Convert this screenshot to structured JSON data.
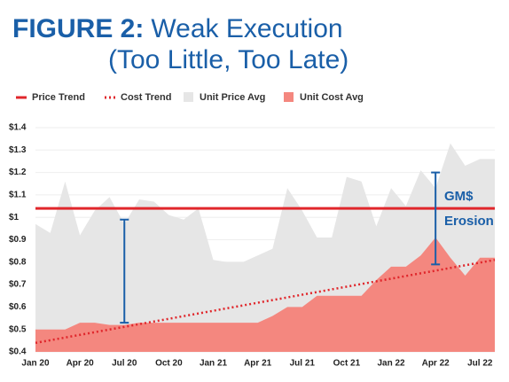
{
  "chart_data": {
    "type": "area",
    "title_label": "FIGURE 2:",
    "title": "Weak Execution",
    "subtitle": "(Too Little, Too Late)",
    "categories": [
      "Jan 20",
      null,
      null,
      "Apr 20",
      null,
      null,
      "Jul 20",
      null,
      null,
      "Oct 20",
      null,
      null,
      "Jan 21",
      null,
      null,
      "Apr 21",
      null,
      null,
      "Jul 21",
      null,
      null,
      "Oct 21",
      null,
      null,
      "Jan 22",
      null,
      null,
      "Apr 22",
      null,
      null,
      "Jul 22",
      null
    ],
    "series": [
      {
        "name": "Unit Price Avg",
        "color": "#e6e6e6",
        "values": [
          0.97,
          0.93,
          1.16,
          0.92,
          1.03,
          1.09,
          0.97,
          1.08,
          1.07,
          1.01,
          0.99,
          1.04,
          0.81,
          0.8,
          0.8,
          0.83,
          0.86,
          1.13,
          1.03,
          0.91,
          0.91,
          1.18,
          1.16,
          0.96,
          1.13,
          1.05,
          1.21,
          1.13,
          1.33,
          1.23,
          1.26,
          1.26
        ]
      },
      {
        "name": "Unit Cost Avg",
        "color": "#f4877f",
        "values": [
          0.5,
          0.5,
          0.5,
          0.53,
          0.53,
          0.52,
          0.52,
          0.53,
          0.53,
          0.53,
          0.53,
          0.53,
          0.53,
          0.53,
          0.53,
          0.53,
          0.56,
          0.6,
          0.6,
          0.65,
          0.65,
          0.65,
          0.65,
          0.72,
          0.78,
          0.78,
          0.83,
          0.91,
          0.82,
          0.74,
          0.82,
          0.82
        ]
      }
    ],
    "trends": [
      {
        "name": "Price Trend",
        "color": "#e0262b",
        "style": "solid",
        "values": [
          1.04,
          1.04
        ]
      },
      {
        "name": "Cost Trend",
        "color": "#e0262b",
        "style": "dotted",
        "values": [
          0.44,
          0.81
        ]
      }
    ],
    "brackets": [
      {
        "at": "Jul 20",
        "values": [
          0.53,
          0.99
        ]
      },
      {
        "at": "Apr 22",
        "values": [
          0.79,
          1.2
        ]
      }
    ],
    "annotations": [
      "GM$",
      "Erosion"
    ],
    "ylim": [
      0.4,
      1.4
    ],
    "yticks": [
      {
        "value": 0.4,
        "label": "$0.4"
      },
      {
        "value": 0.5,
        "label": "$0.5"
      },
      {
        "value": 0.6,
        "label": "$0.6"
      },
      {
        "value": 0.7,
        "label": "$0.7"
      },
      {
        "value": 0.8,
        "label": "$0.8"
      },
      {
        "value": 0.9,
        "label": "$0.9"
      },
      {
        "value": 1,
        "label": "$1"
      },
      {
        "value": 1.1,
        "label": "$1.1"
      },
      {
        "value": 1.2,
        "label": "$1.2"
      },
      {
        "value": 1.3,
        "label": "$1.3"
      },
      {
        "value": 1.4,
        "label": "$1.4"
      }
    ],
    "grid": true,
    "accent_color": "#1a5fa8"
  }
}
